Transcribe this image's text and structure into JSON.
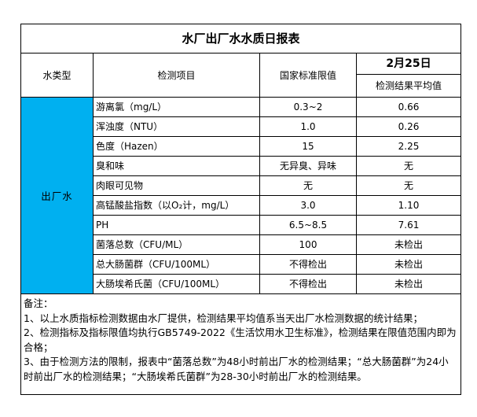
{
  "title": "水厂出厂水水质日报表",
  "header": {
    "water_type": "水类型",
    "item": "检测项目",
    "standard": "国家标准限值",
    "date": "2月25日",
    "avg": "检测结果平均值"
  },
  "water_type_value": "出厂水",
  "rows": [
    {
      "item": "游离氯（mg/L）",
      "standard": "0.3~2",
      "result": "0.66"
    },
    {
      "item": "浑浊度（NTU）",
      "standard": "1.0",
      "result": "0.26"
    },
    {
      "item": "色度（Hazen）",
      "standard": "15",
      "result": "2.25"
    },
    {
      "item": "臭和味",
      "standard": "无异臭、异味",
      "result": "无"
    },
    {
      "item": "肉眼可见物",
      "standard": "无",
      "result": "无"
    },
    {
      "item": "高锰酸盐指数（以O₂计，mg/L）",
      "standard": "3.0",
      "result": "1.10"
    },
    {
      "item": "PH",
      "standard": "6.5~8.5",
      "result": "7.61"
    },
    {
      "item": "菌落总数（CFU/ML）",
      "standard": "100",
      "result": "未检出"
    },
    {
      "item": "总大肠菌群（CFU/100ML）",
      "standard": "不得检出",
      "result": "未检出"
    },
    {
      "item": "大肠埃希氏菌（CFU/100ML）",
      "standard": "不得检出",
      "result": "未检出"
    }
  ],
  "notes": {
    "label": "备注：",
    "lines": [
      "1、以上水质指标检测数据由水厂提供，检测结果平均值系当天出厂水检测数据的统计结果；",
      "2、检测指标及指标限值均执行GB5749-2022《生活饮用水卫生标准》，检测结果在限值范围内即为合格；",
      "3、由于检测方法的限制，报表中“菌落总数”为48小时前出厂水的检测结果；“总大肠菌群”为24小时前出厂水的检测结果；“大肠埃希氏菌群”为28-30小时前出厂水的检测结果。"
    ]
  },
  "colors": {
    "highlight": "#00B0F0",
    "border": "#000000",
    "background": "#FFFFFF"
  }
}
